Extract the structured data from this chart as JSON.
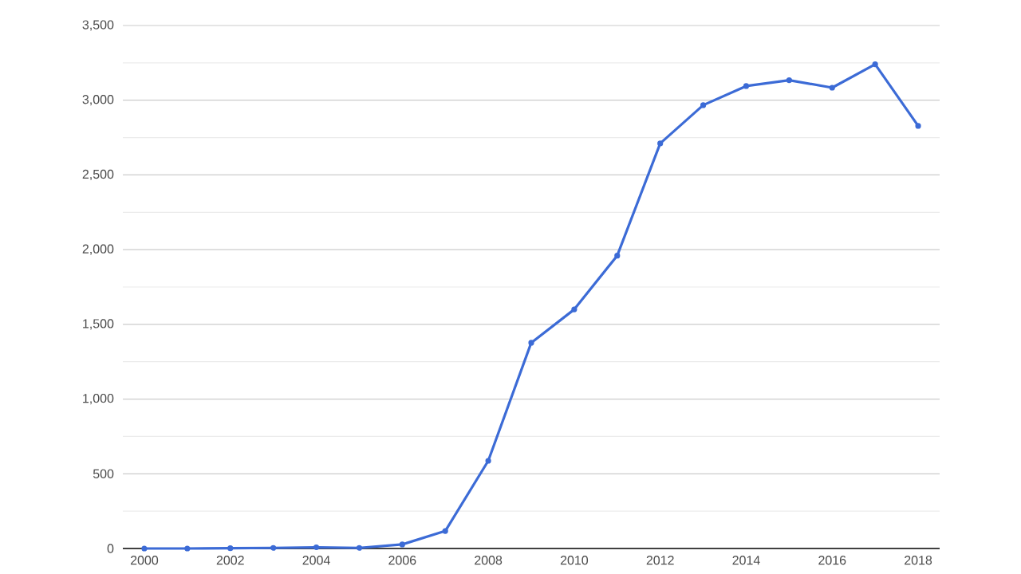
{
  "chart_data": {
    "type": "line",
    "x": [
      2000,
      2001,
      2002,
      2003,
      2004,
      2005,
      2006,
      2007,
      2008,
      2009,
      2010,
      2011,
      2012,
      2013,
      2014,
      2015,
      2016,
      2017,
      2018
    ],
    "series": [
      {
        "color": "#3c6bd6",
        "values": [
          0,
          0,
          2,
          4,
          8,
          4,
          27,
          117,
          587,
          1377,
          1600,
          1960,
          2711,
          2967,
          3095,
          3134,
          3084,
          3241,
          2828
        ]
      }
    ],
    "xlim": [
      1999.5,
      2018.5
    ],
    "ylim": [
      0,
      3500
    ],
    "xticks": [
      2000,
      2002,
      2004,
      2006,
      2008,
      2010,
      2012,
      2014,
      2016,
      2018
    ],
    "yticks": [
      0,
      {
        "value": 250,
        "label": null
      },
      {
        "value": 500,
        "label": "500"
      },
      {
        "value": 750,
        "label": null
      },
      {
        "value": 1000,
        "label": "1,000"
      },
      {
        "value": 1250,
        "label": null
      },
      {
        "value": 1500,
        "label": "1,500"
      },
      {
        "value": 1750,
        "label": null
      },
      {
        "value": 2000,
        "label": "2,000"
      },
      {
        "value": 2250,
        "label": null
      },
      {
        "value": 2500,
        "label": "2,500"
      },
      {
        "value": 2750,
        "label": null
      },
      {
        "value": 3000,
        "label": "3,000"
      },
      {
        "value": 3250,
        "label": null
      },
      {
        "value": 3500,
        "label": "3,500"
      }
    ],
    "grid": "y",
    "marker": "circle",
    "line_style": "solid"
  }
}
